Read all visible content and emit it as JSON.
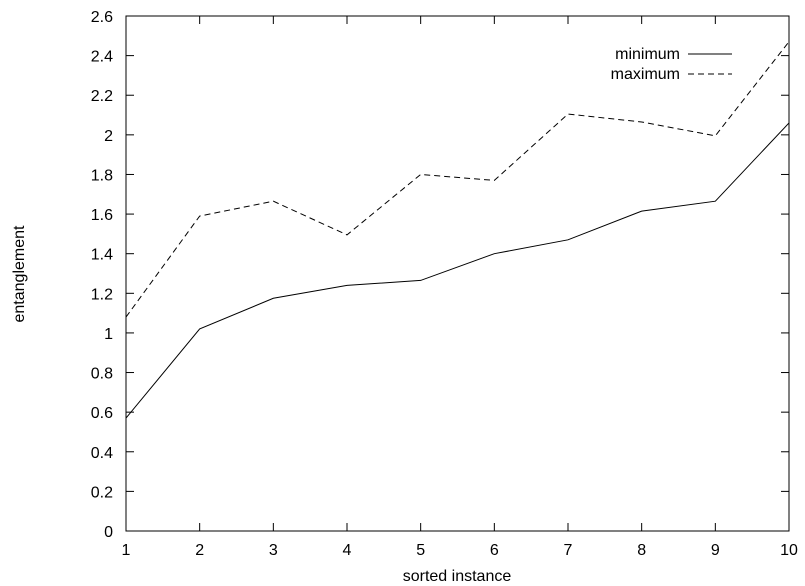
{
  "chart_data": {
    "type": "line",
    "title": "",
    "xlabel": "sorted instance",
    "ylabel": "entanglement",
    "x": [
      1,
      2,
      3,
      4,
      5,
      6,
      7,
      8,
      9,
      10
    ],
    "xlim": [
      1,
      10
    ],
    "ylim": [
      0,
      2.6
    ],
    "xticks": [
      "1",
      "2",
      "3",
      "4",
      "5",
      "6",
      "7",
      "8",
      "9",
      "10"
    ],
    "yticks": [
      "0",
      "0.2",
      "0.4",
      "0.6",
      "0.8",
      "1",
      "1.2",
      "1.4",
      "1.6",
      "1.8",
      "2",
      "2.2",
      "2.4",
      "2.6"
    ],
    "grid": false,
    "legend_position": "top-right",
    "series": [
      {
        "name": "minimum",
        "style": "solid",
        "values": [
          0.57,
          1.02,
          1.175,
          1.24,
          1.265,
          1.4,
          1.47,
          1.615,
          1.665,
          2.06
        ]
      },
      {
        "name": "maximum",
        "style": "dashed",
        "values": [
          1.08,
          1.59,
          1.665,
          1.495,
          1.8,
          1.77,
          2.105,
          2.065,
          1.995,
          2.47
        ]
      }
    ],
    "color": "#000000"
  }
}
